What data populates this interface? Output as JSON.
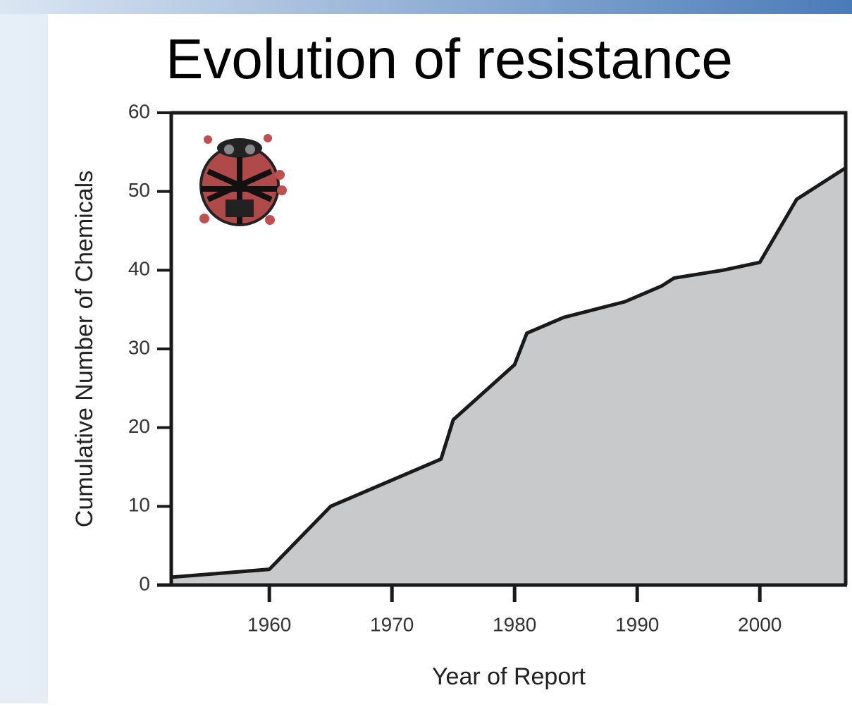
{
  "chart_data": {
    "type": "area",
    "title": "Evolution of resistance",
    "x_label": "Year of Report",
    "y_label": "Cumulative Number of Chemicals",
    "x": [
      1952,
      1960,
      1965,
      1974,
      1975,
      1980,
      1981,
      1984,
      1989,
      1992,
      1993,
      1997,
      2000,
      2003,
      2007
    ],
    "values": [
      1,
      2,
      10,
      16,
      21,
      28,
      32,
      34,
      36,
      38,
      39,
      40,
      41,
      49,
      53
    ],
    "color": "#c8c9cb",
    "line_color": "#1a1a1a",
    "xlim": [
      1952,
      2007
    ],
    "xticks": [
      1960,
      1970,
      1980,
      1990,
      2000
    ],
    "ylim": [
      0,
      60
    ],
    "yticks": [
      0,
      10,
      20,
      30,
      40,
      50,
      60
    ]
  }
}
